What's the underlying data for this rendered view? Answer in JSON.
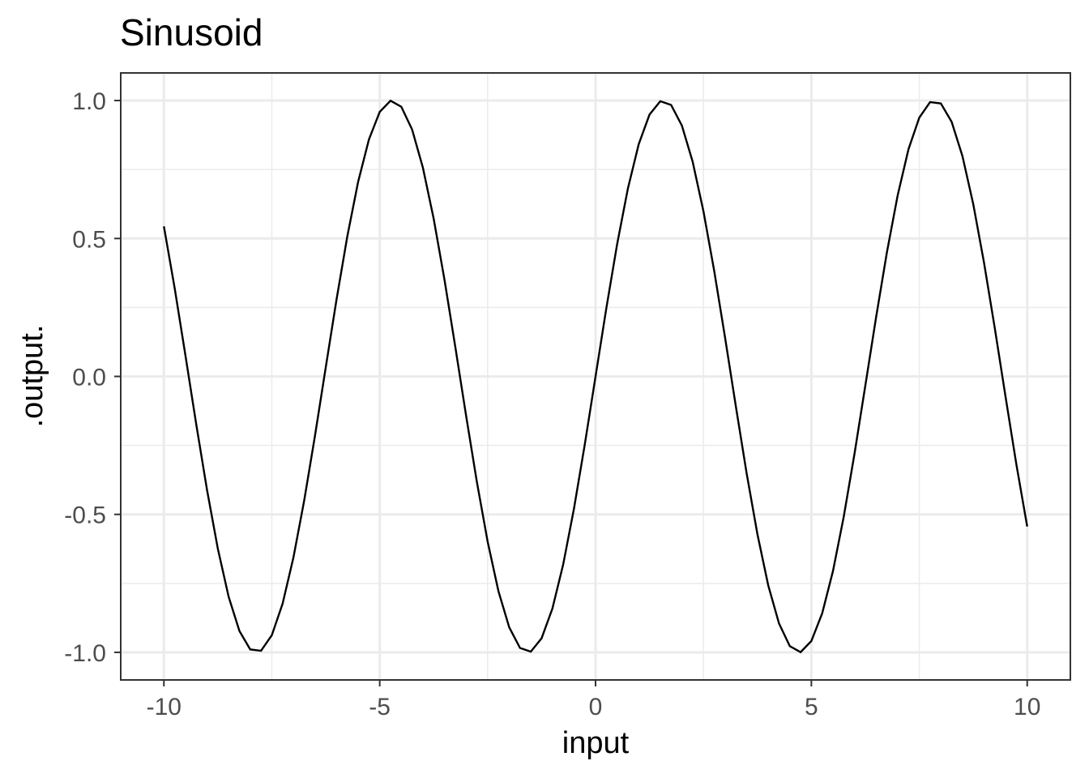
{
  "chart_data": {
    "type": "line",
    "title": "Sinusoid",
    "xlabel": "input",
    "ylabel": ".output.",
    "xlim": [
      -11,
      11
    ],
    "ylim": [
      -1.1,
      1.1
    ],
    "grid": true,
    "x_ticks": [
      -10,
      -5,
      0,
      5,
      10
    ],
    "x_tick_labels": [
      "-10",
      "-5",
      "0",
      "5",
      "10"
    ],
    "x_minor_ticks": [
      -7.5,
      -2.5,
      2.5,
      7.5
    ],
    "y_ticks": [
      -1.0,
      -0.5,
      0.0,
      0.5,
      1.0
    ],
    "y_tick_labels": [
      "-1.0",
      "-0.5",
      "0.0",
      "0.5",
      "1.0"
    ],
    "y_minor_ticks": [
      -0.75,
      -0.25,
      0.25,
      0.75
    ],
    "series": [
      {
        "x": [
          -10,
          -9.75,
          -9.5,
          -9.25,
          -9,
          -8.75,
          -8.5,
          -8.25,
          -8,
          -7.75,
          -7.5,
          -7.25,
          -7,
          -6.75,
          -6.5,
          -6.25,
          -6,
          -5.75,
          -5.5,
          -5.25,
          -5,
          -4.75,
          -4.5,
          -4.25,
          -4,
          -3.75,
          -3.5,
          -3.25,
          -3,
          -2.75,
          -2.5,
          -2.25,
          -2,
          -1.75,
          -1.5,
          -1.25,
          -1,
          -0.75,
          -0.5,
          -0.25,
          0,
          0.25,
          0.5,
          0.75,
          1,
          1.25,
          1.5,
          1.75,
          2,
          2.25,
          2.5,
          2.75,
          3,
          3.25,
          3.5,
          3.75,
          4,
          4.25,
          4.5,
          4.75,
          5,
          5.25,
          5.5,
          5.75,
          6,
          6.25,
          6.5,
          6.75,
          7,
          7.25,
          7.5,
          7.75,
          8,
          8.25,
          8.5,
          8.75,
          9,
          9.25,
          9.5,
          9.75,
          10
        ],
        "y": [
          0.544,
          0.3195,
          0.0752,
          -0.1743,
          -0.4121,
          -0.6247,
          -0.7985,
          -0.9227,
          -0.9894,
          -0.9943,
          -0.938,
          -0.8236,
          -0.657,
          -0.45,
          -0.2151,
          0.0332,
          0.2794,
          0.5083,
          0.7055,
          0.8589,
          0.9589,
          0.9993,
          0.9775,
          0.895,
          0.7568,
          0.5716,
          0.3508,
          0.1082,
          -0.1411,
          -0.3817,
          -0.5985,
          -0.7781,
          -0.9093,
          -0.984,
          -0.9975,
          -0.949,
          -0.8415,
          -0.6816,
          -0.4794,
          -0.2474,
          0,
          0.2474,
          0.4794,
          0.6816,
          0.8415,
          0.949,
          0.9975,
          0.984,
          0.9093,
          0.7781,
          0.5985,
          0.3817,
          0.1411,
          -0.1082,
          -0.3508,
          -0.5716,
          -0.7568,
          -0.895,
          -0.9775,
          -0.9993,
          -0.9589,
          -0.8589,
          -0.7055,
          -0.5083,
          -0.2794,
          -0.0332,
          0.2151,
          0.45,
          0.657,
          0.8236,
          0.938,
          0.9943,
          0.9894,
          0.9227,
          0.7985,
          0.6247,
          0.4121,
          0.1743,
          -0.0752,
          -0.3195,
          -0.544
        ],
        "color": "#000000"
      }
    ]
  }
}
